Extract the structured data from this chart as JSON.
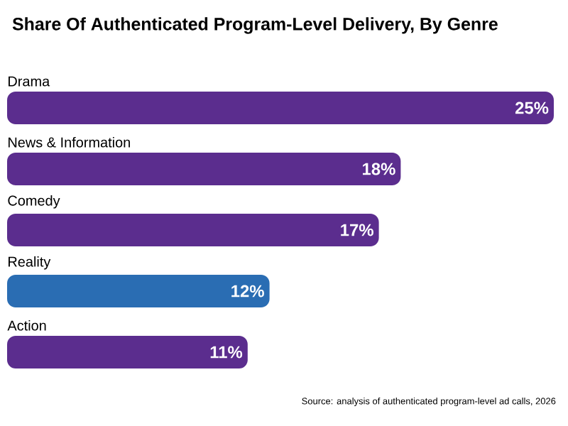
{
  "chart_data": {
    "type": "bar",
    "orientation": "horizontal",
    "title": "Share Of Authenticated Program-Level Delivery, By Genre",
    "categories": [
      "Drama",
      "News & Information",
      "Comedy",
      "Reality",
      "Action"
    ],
    "values": [
      25,
      18,
      17,
      12,
      11
    ],
    "value_labels": [
      "25%",
      "18%",
      "17%",
      "12%",
      "11%"
    ],
    "colors": [
      "#5b2d8e",
      "#5b2d8e",
      "#5b2d8e",
      "#2a6db3",
      "#5b2d8e"
    ],
    "xlim": [
      0,
      25
    ],
    "annotations": [
      "Source: analysis of authenticated program-level ad calls, 2026"
    ]
  }
}
